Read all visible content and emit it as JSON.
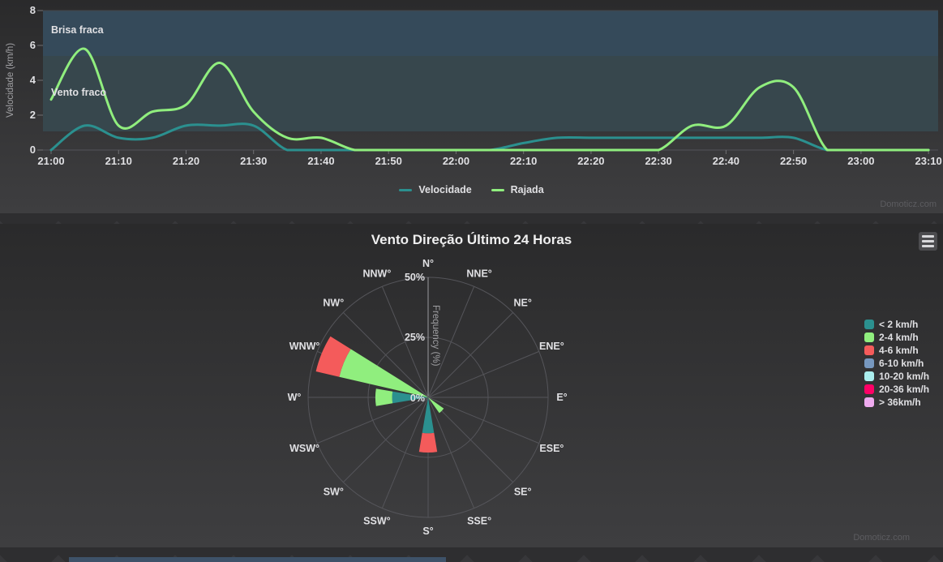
{
  "watermark": "Domoticz.com",
  "context_menu_icon": "hamburger-icon",
  "chart_data": [
    {
      "type": "line",
      "title": "",
      "ylabel": "Velocidade (km/h)",
      "ylim": [
        0,
        8
      ],
      "yticks": [
        0,
        2,
        4,
        6,
        8
      ],
      "x_tick_labels": [
        "21:00",
        "21:10",
        "21:20",
        "21:30",
        "21:40",
        "21:50",
        "22:00",
        "22:10",
        "22:20",
        "22:30",
        "22:40",
        "22:50",
        "23:00",
        "23:10"
      ],
      "x": [
        "21:00",
        "21:05",
        "21:10",
        "21:15",
        "21:20",
        "21:25",
        "21:30",
        "21:35",
        "21:40",
        "21:45",
        "21:50",
        "21:55",
        "22:00",
        "22:05",
        "22:10",
        "22:15",
        "22:20",
        "22:25",
        "22:30",
        "22:35",
        "22:40",
        "22:45",
        "22:50",
        "22:55",
        "23:00",
        "23:05",
        "23:10"
      ],
      "series": [
        {
          "name": "Velocidade",
          "color": "#2b908f",
          "values": [
            0,
            1.4,
            0.7,
            0.7,
            1.4,
            1.4,
            1.4,
            0,
            0,
            0,
            0,
            0,
            0,
            0,
            0.4,
            0.7,
            0.7,
            0.7,
            0.7,
            0.7,
            0.7,
            0.7,
            0.7,
            0,
            0,
            0,
            0
          ]
        },
        {
          "name": "Rajada",
          "color": "#90ee7e",
          "values": [
            2.9,
            5.8,
            1.4,
            2.2,
            2.6,
            5.0,
            2.2,
            0.7,
            0.7,
            0,
            0,
            0,
            0,
            0,
            0,
            0,
            0,
            0,
            0,
            1.4,
            1.4,
            3.6,
            3.6,
            0,
            0,
            0,
            0
          ]
        }
      ],
      "plot_bands": [
        {
          "label": "Vento fraco",
          "from": 1.08,
          "to": 5.4,
          "color": "#37474d"
        },
        {
          "label": "Brisa fraca",
          "from": 5.4,
          "to": 8,
          "color": "#354a5a"
        }
      ],
      "legend_position": "bottom",
      "grid": "off"
    },
    {
      "type": "windrose",
      "title": "Vento Direção Último 24 Horas",
      "radial_label": "Frequency (%)",
      "radial_ticks": [
        "0%",
        "25%",
        "50%"
      ],
      "rmax": 50,
      "grid": "polar: rings at 25% and 50%, 16 spokes",
      "legend_position": "right",
      "directions": [
        "N°",
        "NNE°",
        "NE°",
        "ENE°",
        "E°",
        "ESE°",
        "SE°",
        "SSE°",
        "S°",
        "SSW°",
        "SW°",
        "WSW°",
        "W°",
        "WNW°",
        "NW°",
        "NNW°"
      ],
      "bins": [
        {
          "label": "< 2 km/h",
          "color": "#2b908f"
        },
        {
          "label": "2-4 km/h",
          "color": "#90ee7e"
        },
        {
          "label": "4-6 km/h",
          "color": "#f45b5b"
        },
        {
          "label": "6-10 km/h",
          "color": "#7798bf"
        },
        {
          "label": "10-20 km/h",
          "color": "#aaeeee"
        },
        {
          "label": "20-36 km/h",
          "color": "#ff0066"
        },
        {
          "label": "> 36km/h",
          "color": "#eeaaee"
        }
      ],
      "frequencies_pct": {
        "SE": {
          "2-4 km/h": 8
        },
        "S": {
          "< 2 km/h": 15,
          "4-6 km/h": 8
        },
        "W": {
          "< 2 km/h": 15,
          "2-4 km/h": 7
        },
        "WNW": {
          "2-4 km/h": 38,
          "4-6 km/h": 10
        }
      }
    }
  ]
}
